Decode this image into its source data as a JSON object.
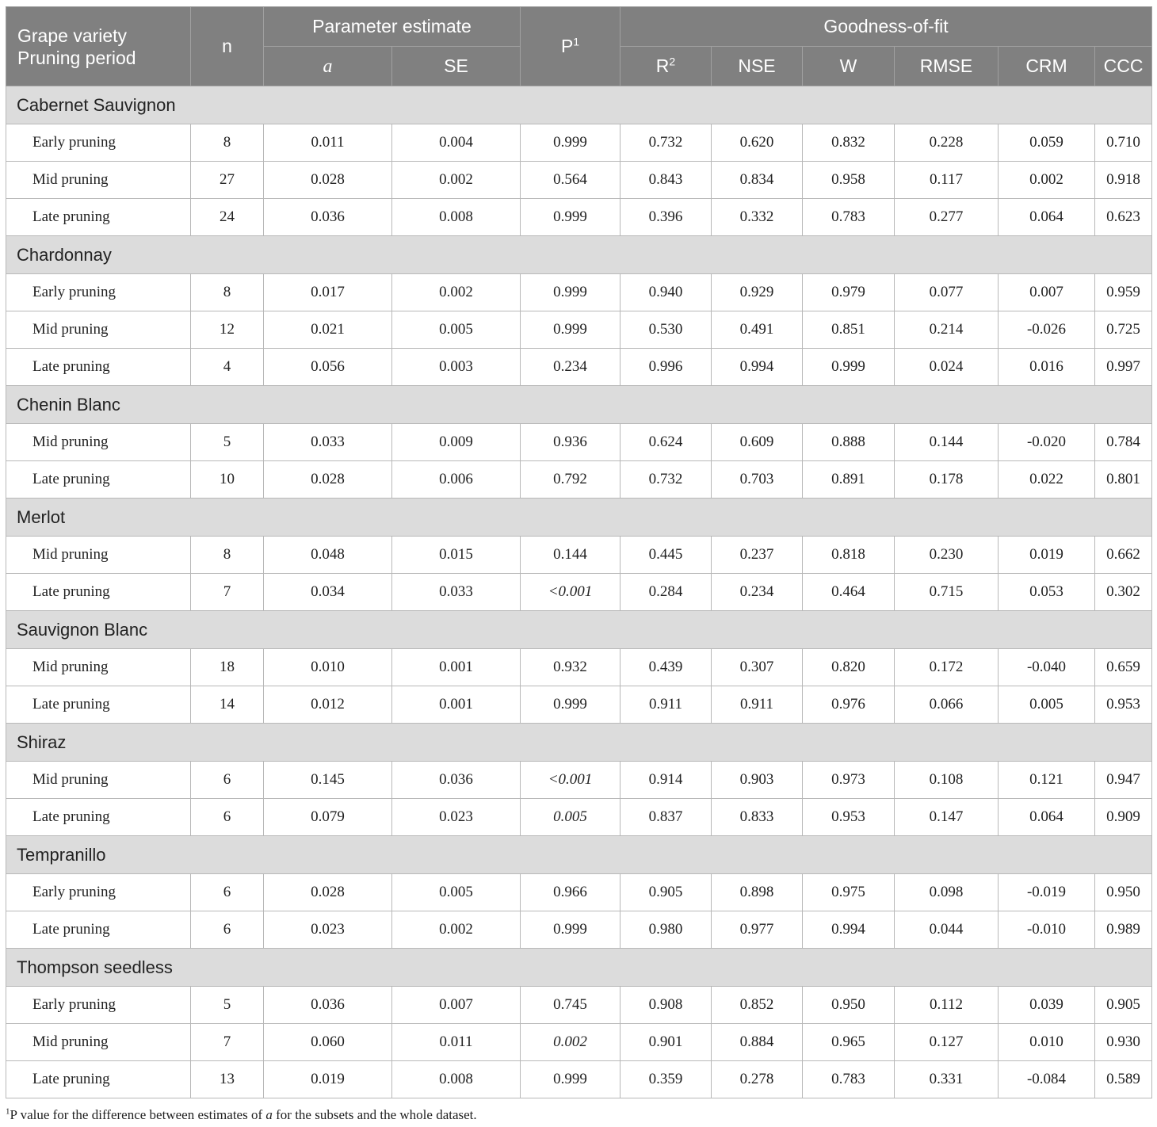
{
  "header": {
    "col1_line1": "Grape variety",
    "col1_line2": "Pruning period",
    "n": "n",
    "param_group": "Parameter estimate",
    "a": "a",
    "se": "SE",
    "p": "P",
    "p_sup": "1",
    "gof_group": "Goodness-of-fit",
    "r2": "R",
    "r2_sup": "2",
    "nse": "NSE",
    "w": "W",
    "rmse": "RMSE",
    "crm": "CRM",
    "ccc": "CCC"
  },
  "groups": [
    {
      "name": "Cabernet Sauvignon",
      "rows": [
        {
          "label": "Early pruning",
          "n": "8",
          "a": "0.011",
          "se": "0.004",
          "p": "0.999",
          "p_italic": false,
          "r2": "0.732",
          "nse": "0.620",
          "w": "0.832",
          "rmse": "0.228",
          "crm": "0.059",
          "ccc": "0.710"
        },
        {
          "label": "Mid pruning",
          "n": "27",
          "a": "0.028",
          "se": "0.002",
          "p": "0.564",
          "p_italic": false,
          "r2": "0.843",
          "nse": "0.834",
          "w": "0.958",
          "rmse": "0.117",
          "crm": "0.002",
          "ccc": "0.918"
        },
        {
          "label": "Late pruning",
          "n": "24",
          "a": "0.036",
          "se": "0.008",
          "p": "0.999",
          "p_italic": false,
          "r2": "0.396",
          "nse": "0.332",
          "w": "0.783",
          "rmse": "0.277",
          "crm": "0.064",
          "ccc": "0.623"
        }
      ]
    },
    {
      "name": "Chardonnay",
      "rows": [
        {
          "label": "Early pruning",
          "n": "8",
          "a": "0.017",
          "se": "0.002",
          "p": "0.999",
          "p_italic": false,
          "r2": "0.940",
          "nse": "0.929",
          "w": "0.979",
          "rmse": "0.077",
          "crm": "0.007",
          "ccc": "0.959"
        },
        {
          "label": "Mid pruning",
          "n": "12",
          "a": "0.021",
          "se": "0.005",
          "p": "0.999",
          "p_italic": false,
          "r2": "0.530",
          "nse": "0.491",
          "w": "0.851",
          "rmse": "0.214",
          "crm": "-0.026",
          "ccc": "0.725"
        },
        {
          "label": "Late pruning",
          "n": "4",
          "a": "0.056",
          "se": "0.003",
          "p": "0.234",
          "p_italic": false,
          "r2": "0.996",
          "nse": "0.994",
          "w": "0.999",
          "rmse": "0.024",
          "crm": "0.016",
          "ccc": "0.997"
        }
      ]
    },
    {
      "name": "Chenin Blanc",
      "rows": [
        {
          "label": "Mid pruning",
          "n": "5",
          "a": "0.033",
          "se": "0.009",
          "p": "0.936",
          "p_italic": false,
          "r2": "0.624",
          "nse": "0.609",
          "w": "0.888",
          "rmse": "0.144",
          "crm": "-0.020",
          "ccc": "0.784"
        },
        {
          "label": "Late pruning",
          "n": "10",
          "a": "0.028",
          "se": "0.006",
          "p": "0.792",
          "p_italic": false,
          "r2": "0.732",
          "nse": "0.703",
          "w": "0.891",
          "rmse": "0.178",
          "crm": "0.022",
          "ccc": "0.801"
        }
      ]
    },
    {
      "name": "Merlot",
      "rows": [
        {
          "label": "Mid pruning",
          "n": "8",
          "a": "0.048",
          "se": "0.015",
          "p": "0.144",
          "p_italic": false,
          "r2": "0.445",
          "nse": "0.237",
          "w": "0.818",
          "rmse": "0.230",
          "crm": "0.019",
          "ccc": "0.662"
        },
        {
          "label": "Late pruning",
          "n": "7",
          "a": "0.034",
          "se": "0.033",
          "p": "<0.001",
          "p_italic": true,
          "r2": "0.284",
          "nse": "0.234",
          "w": "0.464",
          "rmse": "0.715",
          "crm": "0.053",
          "ccc": "0.302"
        }
      ]
    },
    {
      "name": "Sauvignon Blanc",
      "rows": [
        {
          "label": "Mid pruning",
          "n": "18",
          "a": "0.010",
          "se": "0.001",
          "p": "0.932",
          "p_italic": false,
          "r2": "0.439",
          "nse": "0.307",
          "w": "0.820",
          "rmse": "0.172",
          "crm": "-0.040",
          "ccc": "0.659"
        },
        {
          "label": "Late pruning",
          "n": "14",
          "a": "0.012",
          "se": "0.001",
          "p": "0.999",
          "p_italic": false,
          "r2": "0.911",
          "nse": "0.911",
          "w": "0.976",
          "rmse": "0.066",
          "crm": "0.005",
          "ccc": "0.953"
        }
      ]
    },
    {
      "name": "Shiraz",
      "rows": [
        {
          "label": "Mid pruning",
          "n": "6",
          "a": "0.145",
          "se": "0.036",
          "p": "<0.001",
          "p_italic": true,
          "r2": "0.914",
          "nse": "0.903",
          "w": "0.973",
          "rmse": "0.108",
          "crm": "0.121",
          "ccc": "0.947"
        },
        {
          "label": "Late pruning",
          "n": "6",
          "a": "0.079",
          "se": "0.023",
          "p": "0.005",
          "p_italic": true,
          "r2": "0.837",
          "nse": "0.833",
          "w": "0.953",
          "rmse": "0.147",
          "crm": "0.064",
          "ccc": "0.909"
        }
      ]
    },
    {
      "name": "Tempranillo",
      "rows": [
        {
          "label": "Early pruning",
          "n": "6",
          "a": "0.028",
          "se": "0.005",
          "p": "0.966",
          "p_italic": false,
          "r2": "0.905",
          "nse": "0.898",
          "w": "0.975",
          "rmse": "0.098",
          "crm": "-0.019",
          "ccc": "0.950"
        },
        {
          "label": "Late pruning",
          "n": "6",
          "a": "0.023",
          "se": "0.002",
          "p": "0.999",
          "p_italic": false,
          "r2": "0.980",
          "nse": "0.977",
          "w": "0.994",
          "rmse": "0.044",
          "crm": "-0.010",
          "ccc": "0.989"
        }
      ]
    },
    {
      "name": "Thompson seedless",
      "rows": [
        {
          "label": "Early pruning",
          "n": "5",
          "a": "0.036",
          "se": "0.007",
          "p": "0.745",
          "p_italic": false,
          "r2": "0.908",
          "nse": "0.852",
          "w": "0.950",
          "rmse": "0.112",
          "crm": "0.039",
          "ccc": "0.905"
        },
        {
          "label": "Mid pruning",
          "n": "7",
          "a": "0.060",
          "se": "0.011",
          "p": "0.002",
          "p_italic": true,
          "r2": "0.901",
          "nse": "0.884",
          "w": "0.965",
          "rmse": "0.127",
          "crm": "0.010",
          "ccc": "0.930"
        },
        {
          "label": "Late pruning",
          "n": "13",
          "a": "0.019",
          "se": "0.008",
          "p": "0.999",
          "p_italic": false,
          "r2": "0.359",
          "nse": "0.278",
          "w": "0.783",
          "rmse": "0.331",
          "crm": "-0.084",
          "ccc": "0.589"
        }
      ]
    }
  ],
  "footnote": {
    "sup": "1",
    "text_before": "P value for the difference between estimates of ",
    "italic": "a",
    "text_after": " for the subsets and the whole dataset."
  }
}
